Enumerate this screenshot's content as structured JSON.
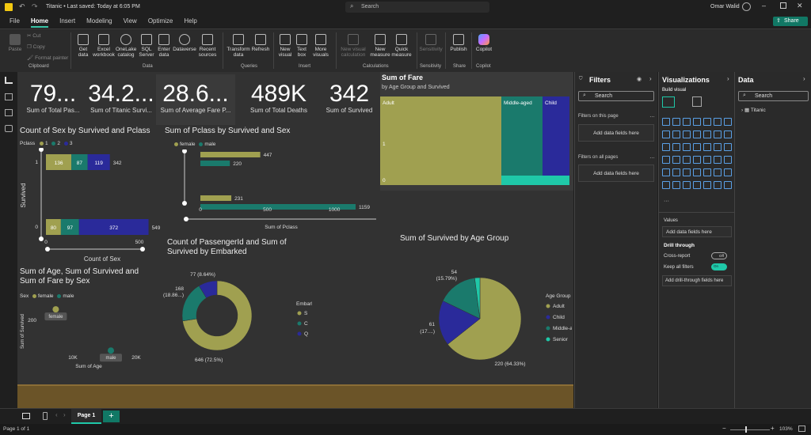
{
  "titlebar": {
    "title": "Titanic • Last saved: Today at 6:05 PM",
    "search_placeholder": "Search",
    "user": "Omar Walid",
    "share_label": "Share"
  },
  "menu": {
    "tabs": [
      "File",
      "Home",
      "Insert",
      "Modeling",
      "View",
      "Optimize",
      "Help"
    ]
  },
  "ribbon": {
    "clipboard": {
      "paste": "Paste",
      "cut": "Cut",
      "copy": "Copy",
      "format_painter": "Format painter",
      "group": "Clipboard"
    },
    "data": {
      "get_data": "Get data",
      "excel": "Excel workbook",
      "onelake": "OneLake catalog",
      "sql": "SQL Server",
      "enter": "Enter data",
      "dataverse": "Dataverse",
      "recent": "Recent sources",
      "group": "Data"
    },
    "queries": {
      "transform": "Transform data",
      "refresh": "Refresh",
      "group": "Queries"
    },
    "insert": {
      "new_visual": "New visual",
      "text_box": "Text box",
      "more_visuals": "More visuals",
      "group": "Insert"
    },
    "calculations": {
      "new_visual_calc": "New visual calculation",
      "new_measure": "New measure",
      "quick_measure": "Quick measure",
      "group": "Calculations"
    },
    "sensitivity": {
      "label": "Sensitivity",
      "group": "Sensitivity"
    },
    "share": {
      "publish": "Publish",
      "group": "Share"
    },
    "copilot": {
      "label": "Copilot",
      "group": "Copilot"
    }
  },
  "cards": [
    {
      "value": "79...",
      "label": "Sum of Total Pas..."
    },
    {
      "value": "34.2...",
      "label": "Sum of Titanic Survi..."
    },
    {
      "value": "28.6...",
      "label": "Sum of Average Fare P..."
    },
    {
      "value": "489K",
      "label": "Sum of Total Deaths"
    },
    {
      "value": "342",
      "label": "Sum of Survived"
    }
  ],
  "chart_data": [
    {
      "type": "bar",
      "title": "Count of Sex by Survived and Pclass",
      "legend_title": "Pclass",
      "legend": [
        "1",
        "2",
        "3"
      ],
      "categories": [
        "1",
        "0"
      ],
      "series": [
        {
          "name": "1",
          "values": [
            136,
            80
          ]
        },
        {
          "name": "2",
          "values": [
            87,
            97
          ]
        },
        {
          "name": "3",
          "values": [
            119,
            372
          ]
        }
      ],
      "totals": [
        342,
        549
      ],
      "ylabel": "Survived",
      "xlabel": "Count of Sex",
      "xticks": [
        "0",
        "500"
      ],
      "colors": [
        "#a0a050",
        "#1a7a6c",
        "#2a2a9a"
      ]
    },
    {
      "type": "bar",
      "title": "Sum of Pclass by Survived and Sex",
      "legend": [
        "female",
        "male"
      ],
      "categories": [
        "1",
        "0"
      ],
      "series": [
        {
          "name": "female",
          "values": [
            447,
            231
          ]
        },
        {
          "name": "male",
          "values": [
            220,
            1159
          ]
        }
      ],
      "xlabel": "Sum of Pclass",
      "xticks": [
        "0",
        "500",
        "1000"
      ],
      "colors": [
        "#a0a050",
        "#1a7a6c"
      ]
    },
    {
      "type": "treemap",
      "title": "Sum of Fare",
      "subtitle": "by Age Group and Survived",
      "groups": [
        {
          "name": "Adult",
          "items": [
            "1",
            "0"
          ]
        },
        {
          "name": "Middle-aged",
          "items": []
        },
        {
          "name": "Child",
          "items": []
        }
      ],
      "colors": [
        "#a0a050",
        "#1a7a6c",
        "#2a2a9a",
        "#1fc8a8"
      ]
    },
    {
      "type": "scatter",
      "title": "Sum of Age, Sum of Survived and Sum of Fare by Sex",
      "legend_title": "Sex",
      "legend": [
        "female",
        "male"
      ],
      "points": [
        {
          "label": "female",
          "x": 7300,
          "y": 233
        },
        {
          "label": "male",
          "x": 16000,
          "y": 109
        }
      ],
      "xticks": [
        "10K",
        "20K"
      ],
      "yticks": [
        "200",
        "100"
      ],
      "xlabel": "Sum of Age",
      "ylabel": "Sum of Survived",
      "colors": [
        "#a0a050",
        "#1a7a6c"
      ]
    },
    {
      "type": "donut",
      "title": "Count of PassengerId and Sum of Survived by Embarked",
      "legend_title": "Embarked",
      "categories": [
        "S",
        "C",
        "Q"
      ],
      "values": [
        646,
        168,
        77
      ],
      "labels": [
        "646 (72.5%)",
        "168 (18.86...)",
        "77 (8.64%)"
      ],
      "colors": [
        "#a0a050",
        "#1a7a6c",
        "#2a2a9a"
      ]
    },
    {
      "type": "pie",
      "title": "Sum of Survived by Age Group",
      "legend_title": "Age Group",
      "categories": [
        "Adult",
        "Child",
        "Middle-aged",
        "Senior"
      ],
      "values": [
        220,
        61,
        54,
        7
      ],
      "labels": [
        "220 (64.33%)",
        "61 (17....)",
        "54 (15.79%)",
        ""
      ],
      "colors": [
        "#a0a050",
        "#2a2a9a",
        "#1a7a6c",
        "#1fc8a8"
      ]
    }
  ],
  "filters": {
    "title": "Filters",
    "search": "Search",
    "on_page": "Filters on this page",
    "on_all": "Filters on all pages",
    "add": "Add data fields here"
  },
  "visualizations": {
    "title": "Visualizations",
    "build": "Build visual",
    "values": "Values",
    "add_values": "Add data fields here",
    "drill": "Drill through",
    "cross_report": "Cross-report",
    "cross_state": "Off",
    "keep_filters": "Keep all filters",
    "keep_state": "On",
    "add_drill": "Add drill-through fields here"
  },
  "data_pane": {
    "title": "Data",
    "search": "Search",
    "tables": [
      "Titanic"
    ]
  },
  "pages": {
    "tabs": [
      "Page 1"
    ],
    "status": "Page 1 of 1",
    "zoom": "103%"
  }
}
